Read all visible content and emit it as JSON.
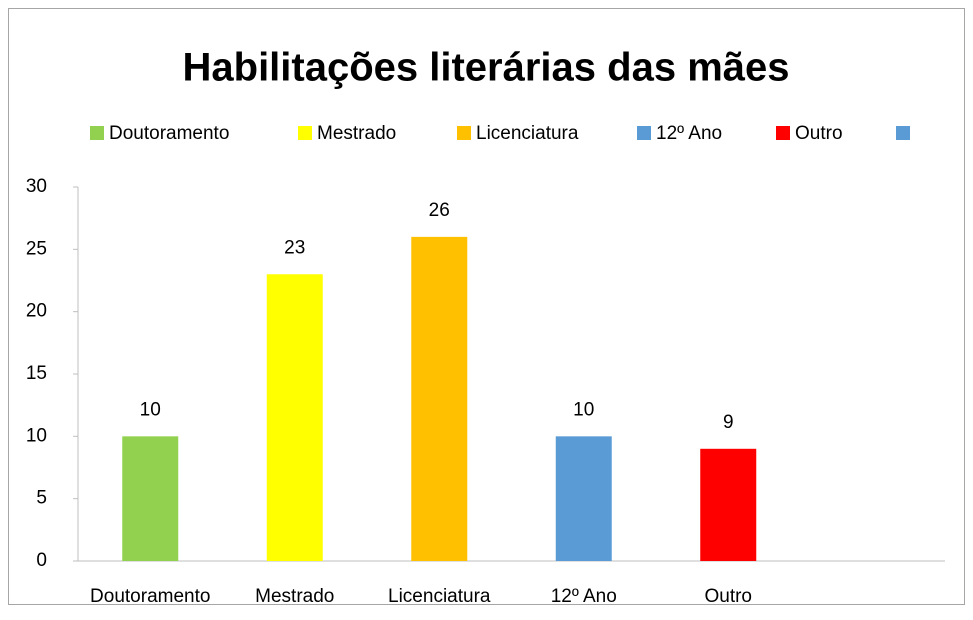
{
  "chart_data": {
    "type": "bar",
    "title": "Habilitações literárias das mães",
    "categories": [
      "Doutoramento",
      "Mestrado",
      "Licenciatura",
      "12º Ano",
      "Outro",
      null
    ],
    "values": [
      10,
      23,
      26,
      10,
      9,
      null
    ],
    "colors": [
      "#92d050",
      "#ffff00",
      "#ffc000",
      "#5b9bd5",
      "#ff0000",
      "#5b9bd5"
    ],
    "ylim": [
      0,
      30
    ],
    "yticks": [
      0,
      5,
      10,
      15,
      20,
      25,
      30
    ],
    "grid": false,
    "legend": "top"
  }
}
